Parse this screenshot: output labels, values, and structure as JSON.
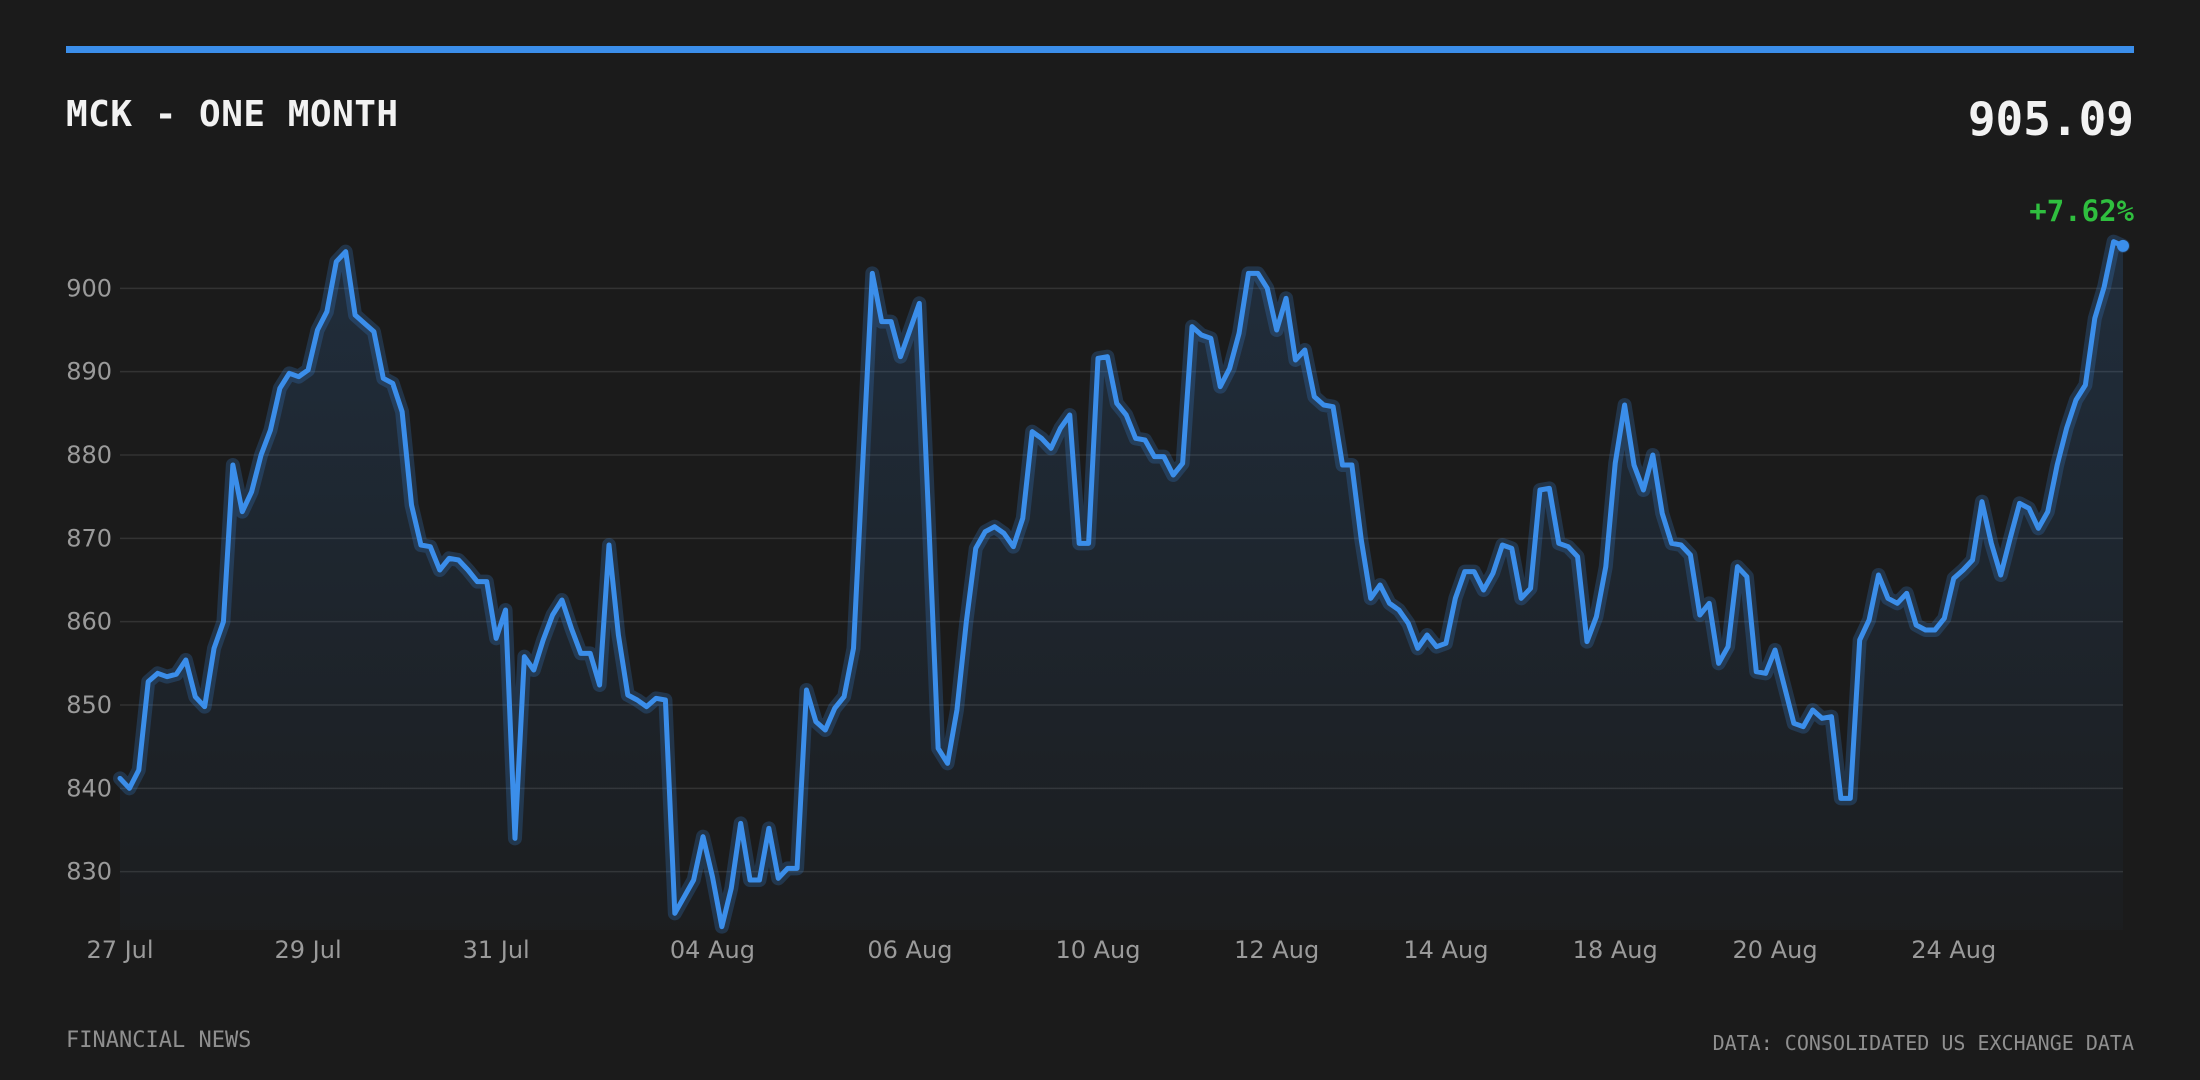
{
  "header": {
    "title": "MCK - ONE MONTH",
    "price": "905.09",
    "change": "+7.62%"
  },
  "footer": {
    "left": "FINANCIAL NEWS",
    "right": "DATA: CONSOLIDATED US EXCHANGE DATA"
  },
  "colors": {
    "background": "#1b1b1b",
    "accent": "#3b8eea",
    "positive": "#2fbf3f",
    "grid": "#333333",
    "text_muted": "#9a9a9a"
  },
  "chart_data": {
    "type": "area",
    "title": "MCK - ONE MONTH",
    "xlabel": "",
    "ylabel": "",
    "ylim": [
      823,
      907
    ],
    "yticks": [
      830,
      840,
      850,
      860,
      870,
      880,
      890,
      900
    ],
    "grid": true,
    "xticks": [
      {
        "index": 0,
        "label": "27 Jul"
      },
      {
        "index": 20,
        "label": "29 Jul"
      },
      {
        "index": 40,
        "label": "31 Jul"
      },
      {
        "index": 63,
        "label": "04 Aug"
      },
      {
        "index": 84,
        "label": "06 Aug"
      },
      {
        "index": 104,
        "label": "10 Aug"
      },
      {
        "index": 123,
        "label": "12 Aug"
      },
      {
        "index": 141,
        "label": "14 Aug"
      },
      {
        "index": 159,
        "label": "18 Aug"
      },
      {
        "index": 176,
        "label": "20 Aug"
      },
      {
        "index": 195,
        "label": "24 Aug"
      }
    ],
    "values": [
      841.2,
      840,
      842.2,
      852.8,
      853.8,
      853.4,
      853.7,
      855.4,
      851,
      849.8,
      856.8,
      860,
      878.8,
      873.2,
      875.6,
      880,
      883,
      888,
      889.8,
      889.4,
      890.2,
      895,
      897.2,
      903.2,
      904.4,
      896.8,
      895.8,
      894.8,
      889.2,
      888.6,
      885.2,
      874,
      869.2,
      869,
      866.2,
      867.6,
      867.4,
      866.2,
      864.8,
      864.8,
      858,
      861.4,
      834,
      855.8,
      854.2,
      857.8,
      860.8,
      862.6,
      859.2,
      856.2,
      856.2,
      852.4,
      869.2,
      858.4,
      851.2,
      850.6,
      849.8,
      850.8,
      850.6,
      825,
      827,
      829,
      834.2,
      829.4,
      823.4,
      828,
      835.8,
      829,
      829,
      835.2,
      829.2,
      830.4,
      830.4,
      851.8,
      848,
      847,
      849.6,
      851,
      856.8,
      879.4,
      901.8,
      896,
      896,
      891.8,
      895,
      898.2,
      872.2,
      844.8,
      843,
      849.4,
      860,
      868.8,
      870.8,
      871.4,
      870.6,
      869,
      872.4,
      882.8,
      882,
      880.8,
      883.2,
      884.8,
      869.4,
      869.4,
      891.6,
      891.8,
      886.2,
      884.8,
      882,
      881.8,
      879.8,
      879.8,
      877.6,
      879,
      895.4,
      894.4,
      894,
      888.2,
      890.4,
      894.6,
      901.8,
      901.8,
      900,
      895,
      898.8,
      891.4,
      892.6,
      887,
      886,
      885.8,
      878.8,
      878.8,
      869.8,
      862.8,
      864.4,
      862.2,
      861.4,
      859.8,
      856.8,
      858.4,
      857,
      857.4,
      862.8,
      866,
      866,
      863.8,
      865.8,
      869.2,
      868.8,
      862.8,
      864,
      875.8,
      876,
      869.4,
      869,
      867.8,
      857.6,
      860.6,
      866.6,
      879,
      886,
      878.8,
      875.8,
      880,
      873,
      869.4,
      869.2,
      868,
      860.8,
      862.2,
      855,
      857,
      866.6,
      865.4,
      854,
      853.8,
      856.6,
      852.2,
      847.8,
      847.4,
      849.4,
      848.4,
      848.6,
      838.8,
      838.8,
      857.8,
      860.2,
      865.6,
      862.8,
      862.2,
      863.4,
      859.6,
      859,
      859,
      860.4,
      865.2,
      866.2,
      867.4,
      874.4,
      869.4,
      865.6,
      870,
      874.2,
      873.6,
      871.2,
      873.2,
      878.8,
      883.2,
      886.6,
      888.4,
      896.4,
      900.2,
      905.6,
      905.09
    ]
  }
}
